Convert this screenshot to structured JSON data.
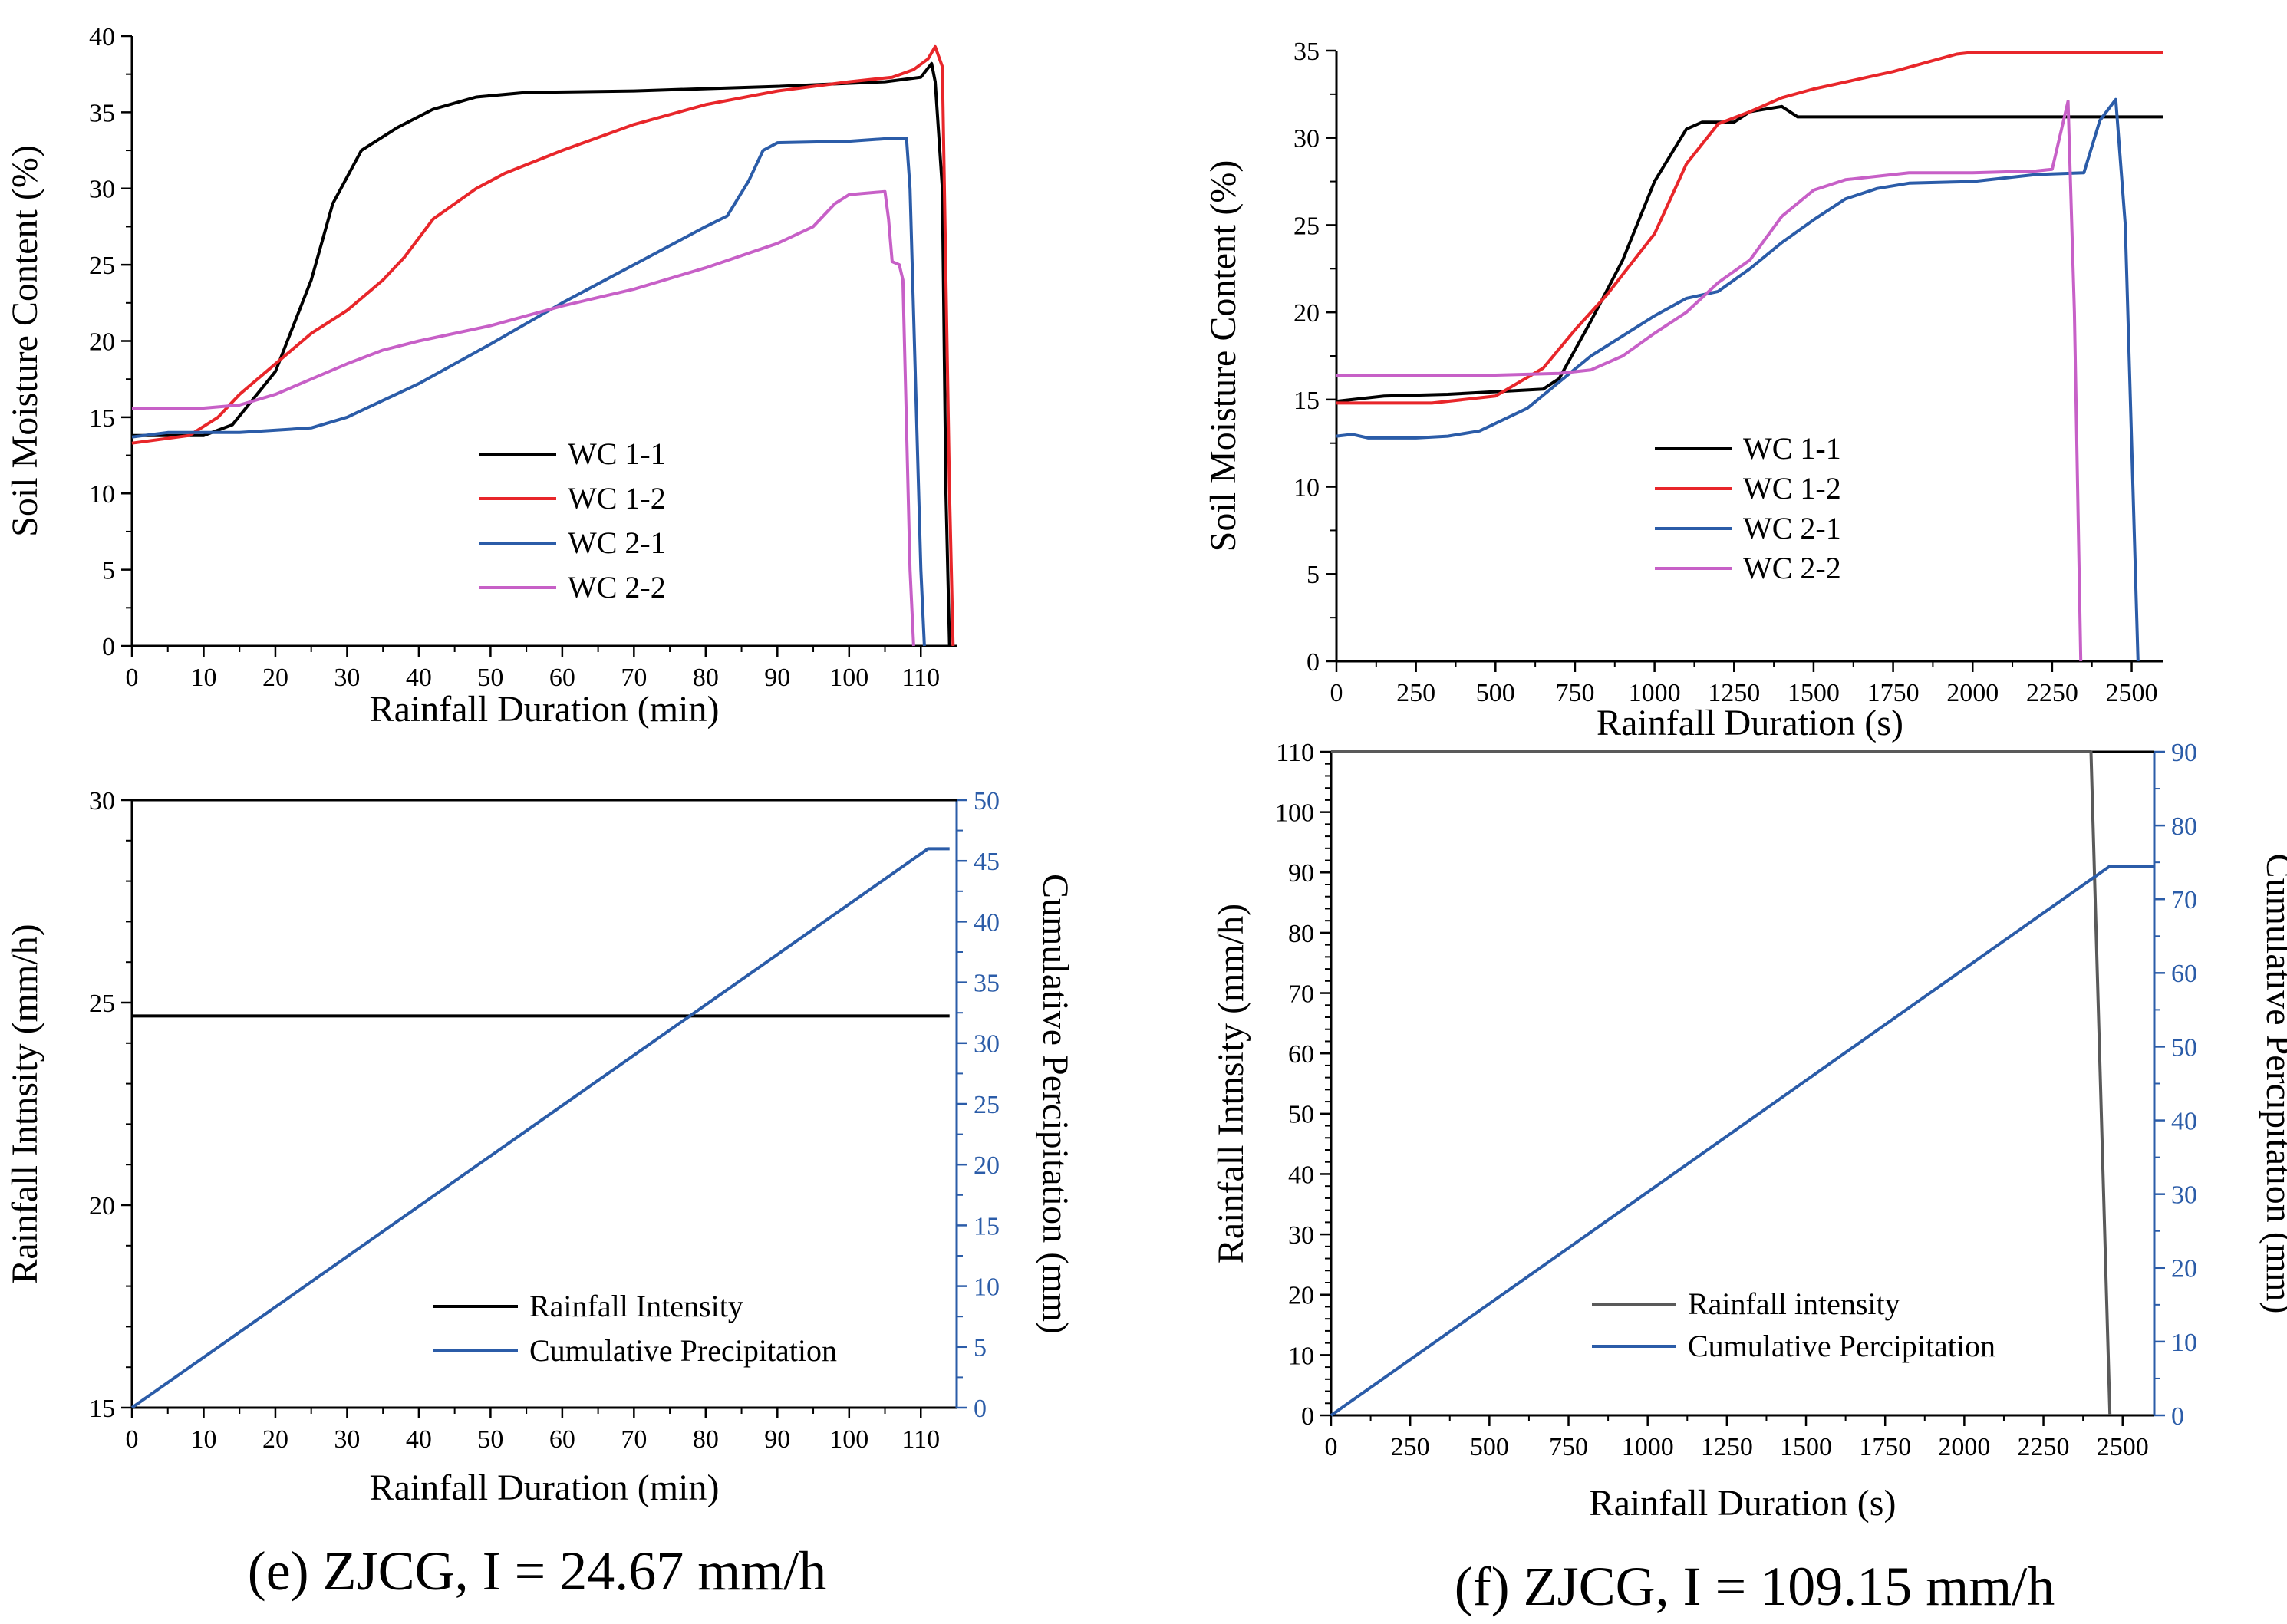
{
  "colors": {
    "black": "#000000",
    "red": "#e8262a",
    "blue": "#2b5ca8",
    "magenta": "#c760c7",
    "gray": "#5a5a5a",
    "axis_blue": "#2b5ca8"
  },
  "captions": {
    "e": "(e) ZJCG, I = 24.67 mm/h",
    "f": "(f) ZJCG, I = 109.15 mm/h"
  },
  "chart_data": [
    {
      "id": "tl",
      "type": "line",
      "xlabel": "Rainfall Duration (min)",
      "ylabel": "Soil Moisture Content (%)",
      "xlim": [
        0,
        115
      ],
      "ylim": [
        0,
        40
      ],
      "xticks": [
        "0",
        "10",
        "20",
        "30",
        "40",
        "50",
        "60",
        "70",
        "80",
        "90",
        "100",
        "110"
      ],
      "yticks": [
        "0",
        "5",
        "10",
        "15",
        "20",
        "25",
        "30",
        "35",
        "40"
      ],
      "legend_position": "lower-left",
      "series": [
        {
          "name": "WC 1-1",
          "color": "black",
          "points": [
            [
              0,
              13.8
            ],
            [
              10,
              13.8
            ],
            [
              14,
              14.5
            ],
            [
              20,
              18
            ],
            [
              25,
              24
            ],
            [
              28,
              29
            ],
            [
              32,
              32.5
            ],
            [
              37,
              34
            ],
            [
              42,
              35.2
            ],
            [
              48,
              36
            ],
            [
              55,
              36.3
            ],
            [
              70,
              36.4
            ],
            [
              90,
              36.7
            ],
            [
              105,
              37
            ],
            [
              110,
              37.3
            ],
            [
              111.5,
              38.2
            ],
            [
              112,
              37
            ],
            [
              113,
              30
            ],
            [
              113.5,
              10
            ],
            [
              114,
              0
            ]
          ]
        },
        {
          "name": "WC 1-2",
          "color": "red",
          "points": [
            [
              0,
              13.3
            ],
            [
              8,
              13.8
            ],
            [
              12,
              15
            ],
            [
              15,
              16.5
            ],
            [
              20,
              18.5
            ],
            [
              25,
              20.5
            ],
            [
              30,
              22
            ],
            [
              35,
              24
            ],
            [
              38,
              25.5
            ],
            [
              42,
              28
            ],
            [
              48,
              30
            ],
            [
              52,
              31
            ],
            [
              60,
              32.5
            ],
            [
              70,
              34.2
            ],
            [
              80,
              35.5
            ],
            [
              90,
              36.4
            ],
            [
              100,
              37
            ],
            [
              106,
              37.3
            ],
            [
              109,
              37.8
            ],
            [
              111,
              38.5
            ],
            [
              112,
              39.3
            ],
            [
              113,
              38
            ],
            [
              114,
              10
            ],
            [
              114.5,
              0
            ]
          ]
        },
        {
          "name": "WC 2-1",
          "color": "blue",
          "points": [
            [
              0,
              13.7
            ],
            [
              5,
              14
            ],
            [
              15,
              14
            ],
            [
              25,
              14.3
            ],
            [
              30,
              15
            ],
            [
              40,
              17.2
            ],
            [
              50,
              19.8
            ],
            [
              60,
              22.5
            ],
            [
              70,
              25
            ],
            [
              80,
              27.5
            ],
            [
              83,
              28.2
            ],
            [
              86,
              30.5
            ],
            [
              88,
              32.5
            ],
            [
              90,
              33
            ],
            [
              100,
              33.1
            ],
            [
              106,
              33.3
            ],
            [
              108,
              33.3
            ],
            [
              108.5,
              30
            ],
            [
              110,
              5
            ],
            [
              110.5,
              0
            ]
          ]
        },
        {
          "name": "WC 2-2",
          "color": "magenta",
          "points": [
            [
              0,
              15.6
            ],
            [
              10,
              15.6
            ],
            [
              15,
              15.8
            ],
            [
              20,
              16.5
            ],
            [
              25,
              17.5
            ],
            [
              30,
              18.5
            ],
            [
              35,
              19.4
            ],
            [
              40,
              20
            ],
            [
              50,
              21
            ],
            [
              60,
              22.3
            ],
            [
              70,
              23.4
            ],
            [
              80,
              24.8
            ],
            [
              90,
              26.4
            ],
            [
              95,
              27.5
            ],
            [
              98,
              29
            ],
            [
              100,
              29.6
            ],
            [
              105,
              29.8
            ],
            [
              105.5,
              28
            ],
            [
              106,
              25.2
            ],
            [
              107,
              25
            ],
            [
              107.5,
              24
            ],
            [
              108.5,
              5
            ],
            [
              109,
              0
            ]
          ]
        }
      ]
    },
    {
      "id": "tr",
      "type": "line",
      "xlabel": "Rainfall Duration (s)",
      "ylabel": "Soil Moisture Content (%)",
      "xlim": [
        0,
        2600
      ],
      "ylim": [
        0,
        35
      ],
      "xticks": [
        "0",
        "250",
        "500",
        "750",
        "1000",
        "1250",
        "1500",
        "1750",
        "2000",
        "2250",
        "2500"
      ],
      "yticks": [
        "0",
        "5",
        "10",
        "15",
        "20",
        "25",
        "30",
        "35"
      ],
      "legend_position": "middle-left",
      "series": [
        {
          "name": "WC 1-1",
          "color": "black",
          "points": [
            [
              0,
              14.9
            ],
            [
              150,
              15.2
            ],
            [
              350,
              15.3
            ],
            [
              550,
              15.5
            ],
            [
              650,
              15.6
            ],
            [
              700,
              16.2
            ],
            [
              800,
              19.5
            ],
            [
              900,
              23
            ],
            [
              1000,
              27.5
            ],
            [
              1100,
              30.5
            ],
            [
              1150,
              30.9
            ],
            [
              1250,
              30.9
            ],
            [
              1300,
              31.5
            ],
            [
              1400,
              31.8
            ],
            [
              1450,
              31.2
            ],
            [
              1500,
              31.2
            ],
            [
              1750,
              31.2
            ],
            [
              2000,
              31.2
            ],
            [
              2600,
              31.2
            ]
          ]
        },
        {
          "name": "WC 1-2",
          "color": "red",
          "points": [
            [
              0,
              14.8
            ],
            [
              300,
              14.8
            ],
            [
              500,
              15.2
            ],
            [
              650,
              16.8
            ],
            [
              750,
              19
            ],
            [
              850,
              21
            ],
            [
              1000,
              24.5
            ],
            [
              1100,
              28.5
            ],
            [
              1200,
              30.8
            ],
            [
              1300,
              31.5
            ],
            [
              1400,
              32.3
            ],
            [
              1500,
              32.8
            ],
            [
              1750,
              33.8
            ],
            [
              1950,
              34.8
            ],
            [
              2000,
              34.9
            ],
            [
              2600,
              34.9
            ]
          ]
        },
        {
          "name": "WC 2-1",
          "color": "blue",
          "points": [
            [
              0,
              12.9
            ],
            [
              50,
              13
            ],
            [
              100,
              12.8
            ],
            [
              250,
              12.8
            ],
            [
              350,
              12.9
            ],
            [
              450,
              13.2
            ],
            [
              600,
              14.5
            ],
            [
              700,
              16
            ],
            [
              800,
              17.5
            ],
            [
              1000,
              19.8
            ],
            [
              1100,
              20.8
            ],
            [
              1200,
              21.2
            ],
            [
              1300,
              22.5
            ],
            [
              1400,
              24
            ],
            [
              1500,
              25.3
            ],
            [
              1600,
              26.5
            ],
            [
              1700,
              27.1
            ],
            [
              1800,
              27.4
            ],
            [
              2000,
              27.5
            ],
            [
              2200,
              27.9
            ],
            [
              2350,
              28
            ],
            [
              2400,
              31
            ],
            [
              2450,
              32.2
            ],
            [
              2480,
              25
            ],
            [
              2520,
              0
            ]
          ]
        },
        {
          "name": "WC 2-2",
          "color": "magenta",
          "points": [
            [
              0,
              16.4
            ],
            [
              300,
              16.4
            ],
            [
              500,
              16.4
            ],
            [
              700,
              16.5
            ],
            [
              800,
              16.7
            ],
            [
              900,
              17.5
            ],
            [
              1000,
              18.8
            ],
            [
              1100,
              20
            ],
            [
              1200,
              21.7
            ],
            [
              1300,
              23
            ],
            [
              1400,
              25.5
            ],
            [
              1500,
              27
            ],
            [
              1600,
              27.6
            ],
            [
              1800,
              28
            ],
            [
              2000,
              28
            ],
            [
              2200,
              28.1
            ],
            [
              2250,
              28.2
            ],
            [
              2300,
              32.1
            ],
            [
              2320,
              20
            ],
            [
              2340,
              0
            ]
          ]
        }
      ]
    },
    {
      "id": "bl",
      "type": "line",
      "xlabel": "Rainfall Duration (min)",
      "ylabel": "Rainfall Intnsity (mm/h)",
      "y2label": "Cumulative Percipitation (mm)",
      "xlim": [
        0,
        115
      ],
      "ylim": [
        15,
        30
      ],
      "y2lim": [
        0,
        50
      ],
      "xticks": [
        "0",
        "10",
        "20",
        "30",
        "40",
        "50",
        "60",
        "70",
        "80",
        "90",
        "100",
        "110"
      ],
      "yticks": [
        "15",
        "20",
        "25",
        "30"
      ],
      "y2ticks": [
        "0",
        "5",
        "10",
        "15",
        "20",
        "25",
        "30",
        "35",
        "40",
        "45",
        "50"
      ],
      "legend_position": "bottom-center",
      "series": [
        {
          "name": "Rainfall Intensity",
          "color": "black",
          "axis": "left",
          "points": [
            [
              0,
              24.67
            ],
            [
              114,
              24.67
            ]
          ]
        },
        {
          "name": "Cumulative Precipitation",
          "color": "blue",
          "axis": "right",
          "points": [
            [
              0,
              0
            ],
            [
              111,
              46
            ],
            [
              114,
              46
            ]
          ]
        }
      ]
    },
    {
      "id": "br",
      "type": "line",
      "xlabel": "Rainfall Duration (s)",
      "ylabel": "Rainfall Intnsity (mm/h)",
      "y2label": "Cumulative Percipitation (mm)",
      "xlim": [
        0,
        2600
      ],
      "ylim": [
        0,
        110
      ],
      "y2lim": [
        0,
        90
      ],
      "xticks": [
        "0",
        "250",
        "500",
        "750",
        "1000",
        "1250",
        "1500",
        "1750",
        "2000",
        "2250",
        "2500"
      ],
      "yticks": [
        "0",
        "10",
        "20",
        "30",
        "40",
        "50",
        "60",
        "70",
        "80",
        "90",
        "100",
        "110"
      ],
      "y2ticks": [
        "0",
        "10",
        "20",
        "30",
        "40",
        "50",
        "60",
        "70",
        "80",
        "90"
      ],
      "legend_position": "bottom-center",
      "series": [
        {
          "name": "Rainfall intensity",
          "color": "gray",
          "axis": "left",
          "points": [
            [
              0,
              110
            ],
            [
              2400,
              110
            ],
            [
              2460,
              0
            ]
          ]
        },
        {
          "name": "Cumulative Percipitation",
          "color": "blue",
          "axis": "right",
          "points": [
            [
              0,
              0
            ],
            [
              2460,
              74.5
            ],
            [
              2600,
              74.5
            ]
          ]
        }
      ]
    }
  ]
}
